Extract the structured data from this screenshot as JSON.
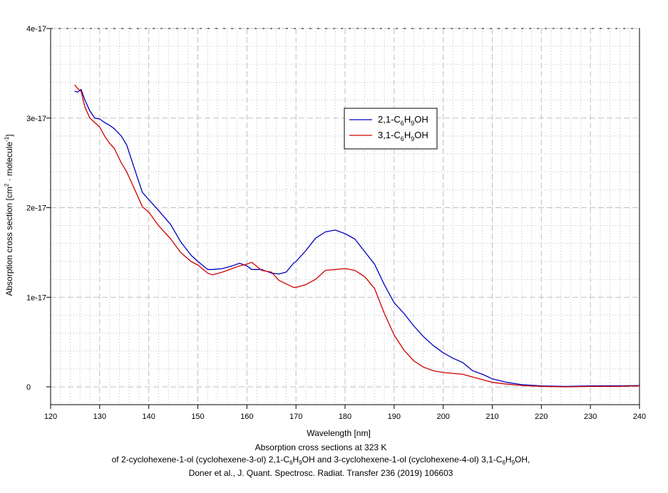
{
  "chart_data": {
    "type": "line",
    "title": "Absorption cross sections at 323 K",
    "xlabel": "Wavelength [nm]",
    "ylabel": "Absorption cross section [cm² · molecule⁻¹]",
    "xlim": [
      120,
      240
    ],
    "ylim": [
      0,
      4e-17
    ],
    "x_ticks": [
      120,
      130,
      140,
      150,
      160,
      170,
      180,
      190,
      200,
      210,
      220,
      230,
      240
    ],
    "x_tick_labels": [
      "120",
      "130",
      "140",
      "150",
      "160",
      "170",
      "180",
      "190",
      "200",
      "210",
      "220",
      "230",
      "240"
    ],
    "y_ticks": [
      0,
      1e-17,
      2e-17,
      3e-17,
      4e-17
    ],
    "y_tick_labels": [
      "0",
      "1e-17",
      "2e-17",
      "3e-17",
      "4e-17"
    ],
    "grid": true,
    "legend_position": "upper-center-right",
    "series": [
      {
        "name": "2,1-C6H9OH",
        "color": "#0000c0",
        "x": [
          124.9,
          125.5,
          126.2,
          127.0,
          128.0,
          129.0,
          130.0,
          131.0,
          132.0,
          133.0,
          134.4,
          135.5,
          137.0,
          138.7,
          140.0,
          142.0,
          144.5,
          146.5,
          148.6,
          150.0,
          152.0,
          153.0,
          155.0,
          157.0,
          158.5,
          160.0,
          161.0,
          163.0,
          165.0,
          166.5,
          168.0,
          169.5,
          170.0,
          172.0,
          174.0,
          176.0,
          178.0,
          180.0,
          182.0,
          184.0,
          186.0,
          188.0,
          190.0,
          192.0,
          194.0,
          196.0,
          198.0,
          200.0,
          202.0,
          204.0,
          206.0,
          208.0,
          210.0,
          213.0,
          216.0,
          220.0,
          225.0,
          230.0,
          235.0,
          240.0
        ],
        "y": [
          3.3e-17,
          3.29e-17,
          3.32e-17,
          3.2e-17,
          3.08e-17,
          3e-17,
          2.99e-17,
          2.95e-17,
          2.92e-17,
          2.88e-17,
          2.8e-17,
          2.7e-17,
          2.45e-17,
          2.17e-17,
          2.09e-17,
          1.97e-17,
          1.81e-17,
          1.62e-17,
          1.47e-17,
          1.4e-17,
          1.31e-17,
          1.31e-17,
          1.32e-17,
          1.35e-17,
          1.38e-17,
          1.35e-17,
          1.31e-17,
          1.31e-17,
          1.27e-17,
          1.26e-17,
          1.28e-17,
          1.38e-17,
          1.4e-17,
          1.52e-17,
          1.66e-17,
          1.73e-17,
          1.75e-17,
          1.71e-17,
          1.65e-17,
          1.51e-17,
          1.37e-17,
          1.14e-17,
          9.4e-18,
          8.2e-18,
          6.8e-18,
          5.6e-18,
          4.6e-18,
          3.8e-18,
          3.2e-18,
          2.7e-18,
          1.8e-18,
          1.4e-18,
          9e-19,
          5e-19,
          2.5e-19,
          1e-19,
          5e-20,
          1e-19,
          1e-19,
          1.5e-19
        ]
      },
      {
        "name": "3,1-C6H9OH",
        "color": "#d00000",
        "x": [
          124.9,
          125.5,
          126.2,
          127.0,
          128.0,
          129.0,
          130.0,
          131.0,
          132.0,
          133.0,
          134.4,
          135.5,
          137.0,
          138.7,
          140.0,
          142.0,
          144.5,
          146.5,
          148.6,
          150.0,
          152.0,
          153.0,
          155.0,
          157.0,
          158.5,
          160.0,
          161.0,
          163.0,
          165.0,
          166.5,
          168.0,
          169.5,
          170.0,
          172.0,
          174.0,
          176.0,
          178.0,
          180.0,
          182.0,
          184.0,
          186.0,
          188.0,
          190.0,
          192.0,
          194.0,
          196.0,
          198.0,
          200.0,
          202.0,
          204.0,
          206.0,
          208.0,
          210.0,
          213.0,
          216.0,
          220.0,
          225.0,
          230.0,
          235.0,
          240.0
        ],
        "y": [
          3.37e-17,
          3.33e-17,
          3.3e-17,
          3.12e-17,
          3e-17,
          2.95e-17,
          2.9e-17,
          2.8e-17,
          2.72e-17,
          2.66e-17,
          2.5e-17,
          2.4e-17,
          2.22e-17,
          2.01e-17,
          1.95e-17,
          1.8e-17,
          1.65e-17,
          1.5e-17,
          1.4e-17,
          1.36e-17,
          1.27e-17,
          1.25e-17,
          1.28e-17,
          1.32e-17,
          1.35e-17,
          1.37e-17,
          1.39e-17,
          1.3e-17,
          1.28e-17,
          1.19e-17,
          1.15e-17,
          1.11e-17,
          1.11e-17,
          1.14e-17,
          1.2e-17,
          1.3e-17,
          1.31e-17,
          1.32e-17,
          1.3e-17,
          1.23e-17,
          1.1e-17,
          8.2e-18,
          5.8e-18,
          4.1e-18,
          2.9e-18,
          2.2e-18,
          1.8e-18,
          1.6e-18,
          1.5e-18,
          1.4e-18,
          1.1e-18,
          8e-19,
          5e-19,
          3e-19,
          1.5e-19,
          5e-20,
          0.0,
          5e-20,
          5e-20,
          1e-19
        ]
      }
    ],
    "legend": [
      {
        "prefix": "2,1-C",
        "sub1": "6",
        "mid": "H",
        "sub2": "9",
        "suffix": "OH",
        "color": "#0000c0"
      },
      {
        "prefix": "3,1-C",
        "sub1": "6",
        "mid": "H",
        "sub2": "9",
        "suffix": "OH",
        "color": "#d00000"
      }
    ]
  },
  "caption": {
    "xlabel": "Wavelength [nm]",
    "line1": "Absorption cross sections at 323 K",
    "line2_a": "of 2-cyclohexene-1-ol (cyclohexene-3-ol) 2,1-C",
    "line2_b": "H",
    "line2_c": "OH  and 3-cyclohexene-1-ol (cyclohexene-4-ol) 3,1-C",
    "line2_d": "H",
    "line2_e": "OH,",
    "sub6": "6",
    "sub9": "9",
    "line3": "Doner et al., J. Quant. Spectrosc. Radiat. Transfer 236 (2019) 106603"
  },
  "ylabel": {
    "main": "Absorption cross section [cm",
    "sup2": "2",
    "mid": " · molecule",
    "supm1": "-1",
    "end": "]"
  }
}
